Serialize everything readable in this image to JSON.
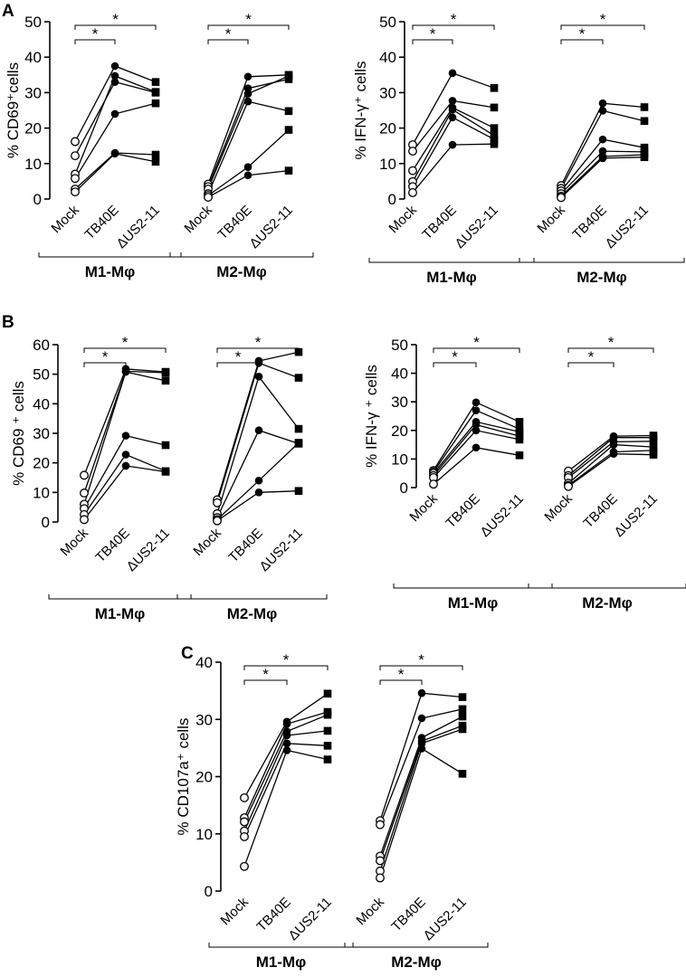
{
  "panel_labels": [
    "A",
    "B",
    "C"
  ],
  "chart_data": [
    {
      "type": "scatter",
      "panel": "A",
      "ylabel": "% CD69⁺cells",
      "ylim": [
        0,
        50
      ],
      "yticks": [
        "0",
        "10",
        "20",
        "30",
        "40",
        "50"
      ],
      "categories": [
        "Mock",
        "TB40E",
        "ΔUS2-11"
      ],
      "groups": [
        {
          "name": "M1-Mφ",
          "sig_labels": [
            "*",
            "*"
          ],
          "donors": [
            [
              16.2,
              37.5,
              33
            ],
            [
              12.2,
              33,
              30
            ],
            [
              7,
              34.7,
              30.2
            ],
            [
              5.8,
              24,
              27
            ],
            [
              2.8,
              13,
              12.5
            ],
            [
              2,
              12.8,
              10.5
            ]
          ]
        },
        {
          "name": "M2-Mφ",
          "sig_labels": [
            "*",
            "*"
          ],
          "donors": [
            [
              4.2,
              34.5,
              35
            ],
            [
              3.5,
              31.2,
              33.8
            ],
            [
              2.8,
              29.7,
              34.7
            ],
            [
              1.5,
              27.5,
              24.8
            ],
            [
              1,
              9,
              19.5
            ],
            [
              0.5,
              6.7,
              8
            ]
          ]
        }
      ]
    },
    {
      "type": "scatter",
      "panel": "A",
      "ylabel": "% IFN-γ⁺ cells",
      "ylim": [
        0,
        50
      ],
      "yticks": [
        "0",
        "10",
        "20",
        "30",
        "40",
        "50"
      ],
      "categories": [
        "Mock",
        "TB40E",
        "ΔUS2-11"
      ],
      "groups": [
        {
          "name": "M1-Mφ",
          "sig_labels": [
            "*",
            "*"
          ],
          "donors": [
            [
              15.3,
              35.5,
              31.3
            ],
            [
              13.5,
              27.7,
              25.8
            ],
            [
              8,
              25.8,
              20
            ],
            [
              4.9,
              25.2,
              17.9
            ],
            [
              3.5,
              23,
              16.8
            ],
            [
              1.8,
              15.3,
              15.5
            ]
          ]
        },
        {
          "name": "M2-Mφ",
          "sig_labels": [
            "*",
            "*"
          ],
          "donors": [
            [
              3.8,
              27,
              25.9
            ],
            [
              3,
              24.9,
              22
            ],
            [
              2.3,
              16.8,
              14.5
            ],
            [
              1.5,
              13.5,
              13.3
            ],
            [
              0.8,
              12,
              12.5
            ],
            [
              0.4,
              11.5,
              11.8
            ]
          ]
        }
      ]
    },
    {
      "type": "scatter",
      "panel": "B",
      "ylabel": "% CD69 ⁺ cells",
      "ylim": [
        0,
        60
      ],
      "yticks": [
        "0",
        "10",
        "20",
        "30",
        "40",
        "50",
        "60"
      ],
      "categories": [
        "Mock",
        "TB40E",
        "ΔUS2-11"
      ],
      "groups": [
        {
          "name": "M1-Mφ",
          "sig_labels": [
            "*",
            "*"
          ],
          "donors": [
            [
              15.8,
              51.8,
              50.8
            ],
            [
              9.8,
              51,
              50.5
            ],
            [
              6,
              50.8,
              47.8
            ],
            [
              4.5,
              29.2,
              26
            ],
            [
              2.5,
              22.8,
              17.2
            ],
            [
              0.8,
              19,
              17
            ]
          ]
        },
        {
          "name": "M2-Mφ",
          "sig_labels": [
            "*",
            "*"
          ],
          "donors": [
            [
              7.5,
              54.5,
              57.5
            ],
            [
              6.5,
              53.8,
              48.8
            ],
            [
              2.8,
              49.2,
              31.5
            ],
            [
              1.5,
              31,
              26.5
            ],
            [
              0.8,
              14,
              26.8
            ],
            [
              0.4,
              10,
              10.5
            ]
          ]
        }
      ]
    },
    {
      "type": "scatter",
      "panel": "B",
      "ylabel": "% IFN-γ ⁺ cells",
      "ylim": [
        0,
        50
      ],
      "yticks": [
        "0",
        "10",
        "20",
        "30",
        "40",
        "50"
      ],
      "categories": [
        "Mock",
        "TB40E",
        "ΔUS2-11"
      ],
      "groups": [
        {
          "name": "M1-Mφ",
          "sig_labels": [
            "*",
            "*"
          ],
          "donors": [
            [
              6,
              29.8,
              23
            ],
            [
              5.5,
              27,
              20.5
            ],
            [
              5,
              23,
              19.5
            ],
            [
              4.2,
              22,
              18
            ],
            [
              3.5,
              20,
              16.8
            ],
            [
              1.2,
              14,
              11.3
            ]
          ]
        },
        {
          "name": "M2-Mφ",
          "sig_labels": [
            "*",
            "*"
          ],
          "donors": [
            [
              5.8,
              18,
              18.2
            ],
            [
              4.2,
              17.5,
              17.5
            ],
            [
              3.5,
              16,
              16.2
            ],
            [
              1.5,
              15,
              14.2
            ],
            [
              0.8,
              12.5,
              13
            ],
            [
              0.4,
              11.8,
              11.5
            ]
          ]
        }
      ]
    },
    {
      "type": "scatter",
      "panel": "C",
      "ylabel": "% CD107a⁺ cells",
      "ylim": [
        0,
        40
      ],
      "yticks": [
        "0",
        "10",
        "20",
        "30",
        "40"
      ],
      "categories": [
        "Mock",
        "TB40E",
        "ΔUS2-11"
      ],
      "groups": [
        {
          "name": "M1-Mφ",
          "sig_labels": [
            "*",
            "*"
          ],
          "donors": [
            [
              16.3,
              29.6,
              34.5
            ],
            [
              12.8,
              29.2,
              31.3
            ],
            [
              12.1,
              27.9,
              30.8
            ],
            [
              10.5,
              27.2,
              28
            ],
            [
              9.5,
              25.8,
              25.4
            ],
            [
              4.3,
              24.6,
              23
            ]
          ]
        },
        {
          "name": "M2-Mφ",
          "sig_labels": [
            "*",
            "*"
          ],
          "donors": [
            [
              12.3,
              34.6,
              33.9
            ],
            [
              11.6,
              30.2,
              31.8
            ],
            [
              6.1,
              26.8,
              30.5
            ],
            [
              5.3,
              26.2,
              28.9
            ],
            [
              3.5,
              25.8,
              28.3
            ],
            [
              2.3,
              24.9,
              20.5
            ]
          ]
        }
      ]
    }
  ]
}
